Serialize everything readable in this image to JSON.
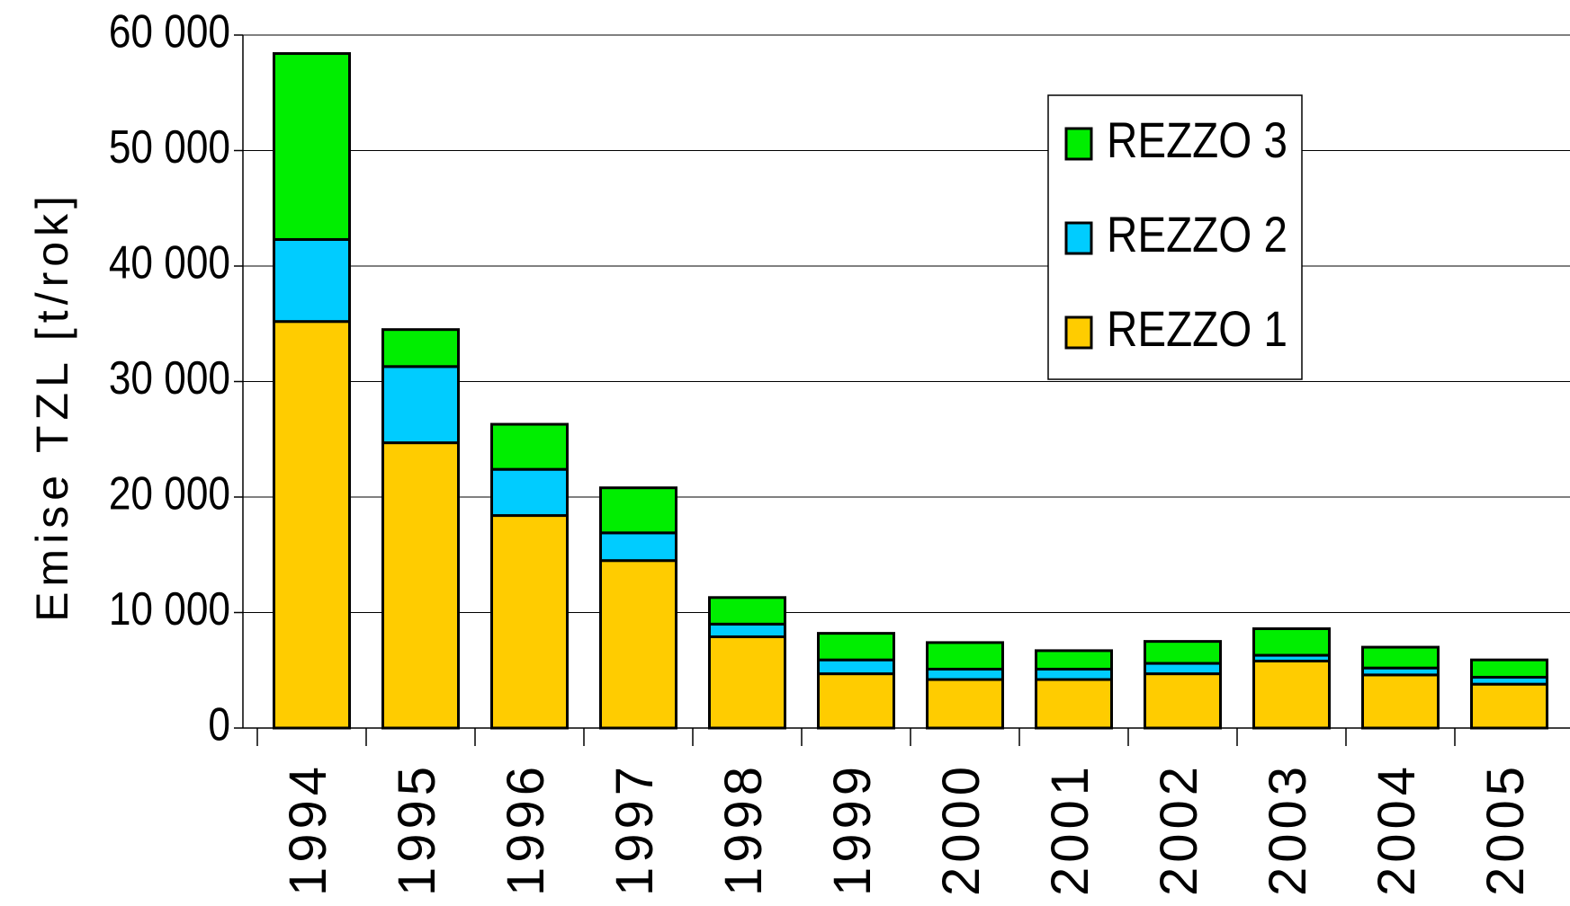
{
  "chart_data": {
    "type": "stacked_bar",
    "y_label": "Emise TZL [t/rok]",
    "categories": [
      "1994",
      "1995",
      "1996",
      "1997",
      "1998",
      "1999",
      "2000",
      "2001",
      "2002",
      "2003",
      "2004",
      "2005"
    ],
    "series": [
      {
        "name": "REZZO 1",
        "color": "#ffcc00",
        "values": [
          35200,
          24700,
          18400,
          14500,
          7900,
          4700,
          4200,
          4200,
          4700,
          5800,
          4600,
          3800
        ]
      },
      {
        "name": "REZZO 2",
        "color": "#00ccff",
        "values": [
          7100,
          6600,
          4000,
          2400,
          1100,
          1200,
          900,
          900,
          900,
          500,
          600,
          600
        ]
      },
      {
        "name": "REZZO 3",
        "color": "#00ee00",
        "values": [
          16100,
          3200,
          3900,
          3900,
          2300,
          2300,
          2300,
          1600,
          1900,
          2300,
          1800,
          1500
        ]
      }
    ],
    "ylim": [
      0,
      60000
    ],
    "yticks": [
      0,
      {
        "value": 10000,
        "label": "10 000"
      },
      {
        "value": 20000,
        "label": "20 000"
      },
      {
        "value": 30000,
        "label": "30 000"
      },
      {
        "value": 40000,
        "label": "40 000"
      },
      {
        "value": 50000,
        "label": "50 000"
      },
      {
        "value": 60000,
        "label": "60 000"
      }
    ],
    "grid": true
  }
}
